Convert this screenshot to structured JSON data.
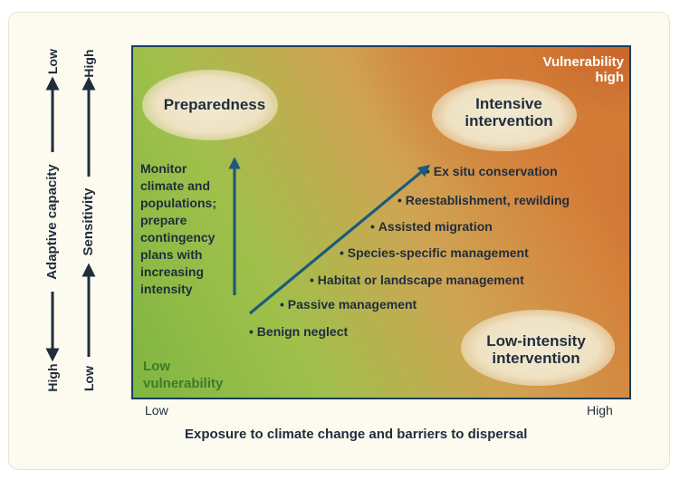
{
  "panel": {
    "top_right_label_line1": "Vulnerability",
    "top_right_label_line2": "high",
    "bottom_left_label_line1": "Low",
    "bottom_left_label_line2": "vulnerability"
  },
  "regions": {
    "preparedness": "Preparedness",
    "intensive_line1": "Intensive",
    "intensive_line2": "intervention",
    "low_intensity_line1": "Low-intensity",
    "low_intensity_line2": "intervention"
  },
  "preparedness_text": [
    "Monitor",
    "climate and",
    "populations;",
    "prepare",
    "contingency",
    "plans with",
    "increasing",
    "intensity"
  ],
  "strategies": [
    "Benign neglect",
    "Passive management",
    "Habitat or landscape management",
    "Species-specific management",
    "Assisted migration",
    "Reestablishment, rewilding",
    "Ex situ conservation"
  ],
  "x_axis": {
    "low": "Low",
    "high": "High",
    "title": "Exposure to climate change and barriers to dispersal"
  },
  "left_axes": {
    "adaptive_capacity": {
      "title": "Adaptive capacity",
      "top": "Low",
      "bottom": "High"
    },
    "sensitivity": {
      "title": "Sensitivity",
      "top": "High",
      "bottom": "Low"
    }
  },
  "colors": {
    "arrow": "#1d5a7a",
    "axis_line": "#1f2d3d",
    "low_green": "#7fb641",
    "high_orange": "#c9662c"
  }
}
